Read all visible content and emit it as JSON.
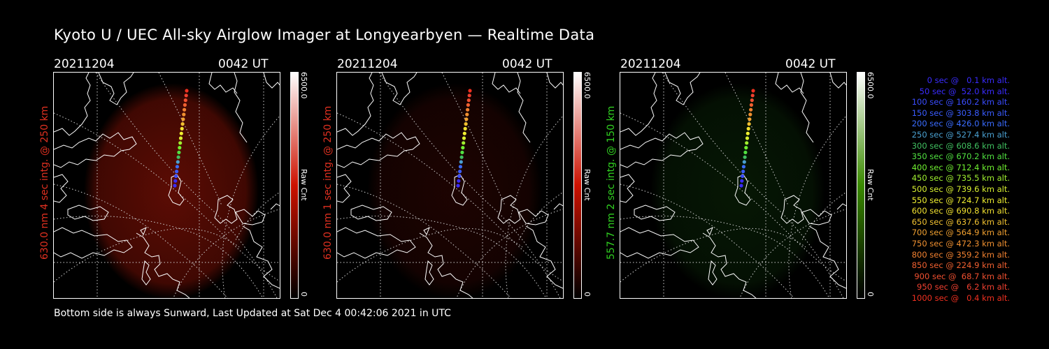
{
  "title": "Kyoto U / UEC All-sky Airglow Imager at Longyearbyen — Realtime Data",
  "footer": "Bottom side is always Sunward, Last Updated at Sat Dec  4 00:42:06 2021 in UTC",
  "panels": [
    {
      "date": "20211204",
      "time": "0042  UT",
      "label": "630.0 nm 4 sec intg. @ 250 km",
      "label_color": "#e03020",
      "cbar_max": "6500.0",
      "cbar_unit": "Raw Cnt",
      "cbar_min": "0",
      "cbar_color": "#cc1100",
      "glow": "#7a1005",
      "glow_opacity": 0.75
    },
    {
      "date": "20211204",
      "time": "0042  UT",
      "label": "630.0 nm 1 sec intg. @ 250 km",
      "label_color": "#e03020",
      "cbar_max": "6500.0",
      "cbar_unit": "Raw Cnt",
      "cbar_min": "0",
      "cbar_color": "#cc1100",
      "glow": "#3a0703",
      "glow_opacity": 0.5
    },
    {
      "date": "20211204",
      "time": "0042  UT",
      "label": "557.7 nm 2 sec intg. @ 150 km",
      "label_color": "#30d020",
      "cbar_max": "6500.0",
      "cbar_unit": "Raw Cnt",
      "cbar_min": "0",
      "cbar_color": "#3a8a00",
      "glow": "#0b2a08",
      "glow_opacity": 0.55
    }
  ],
  "legend": [
    {
      "text": "0 sec @   0.1 km alt.",
      "color": "#3a2cff"
    },
    {
      "text": "50 sec @  52.0 km alt.",
      "color": "#3a2cff"
    },
    {
      "text": "100 sec @ 160.2 km alt.",
      "color": "#3a4cff"
    },
    {
      "text": "150 sec @ 303.8 km alt.",
      "color": "#3a5cff"
    },
    {
      "text": "200 sec @ 426.0 km alt.",
      "color": "#3a6cff"
    },
    {
      "text": "250 sec @ 527.4 km alt.",
      "color": "#4aa0d0"
    },
    {
      "text": "300 sec @ 608.6 km alt.",
      "color": "#40c060"
    },
    {
      "text": "350 sec @ 670.2 km alt.",
      "color": "#50e040"
    },
    {
      "text": "400 sec @ 712.4 km alt.",
      "color": "#70f030"
    },
    {
      "text": "450 sec @ 735.5 km alt.",
      "color": "#a0f030"
    },
    {
      "text": "500 sec @ 739.6 km alt.",
      "color": "#d8f030"
    },
    {
      "text": "550 sec @ 724.7 km alt.",
      "color": "#f0f030"
    },
    {
      "text": "600 sec @ 690.8 km alt.",
      "color": "#f0e030"
    },
    {
      "text": "650 sec @ 637.6 km alt.",
      "color": "#f0c030"
    },
    {
      "text": "700 sec @ 564.9 km alt.",
      "color": "#f0a030"
    },
    {
      "text": "750 sec @ 472.3 km alt.",
      "color": "#f09030"
    },
    {
      "text": "800 sec @ 359.2 km alt.",
      "color": "#f08030"
    },
    {
      "text": "850 sec @ 224.9 km alt.",
      "color": "#f06030"
    },
    {
      "text": "900 sec @  68.7 km alt.",
      "color": "#f05030"
    },
    {
      "text": "950 sec @   6.2 km alt.",
      "color": "#f04030"
    },
    {
      "text": "1000 sec @   0.4 km alt.",
      "color": "#f03020"
    }
  ]
}
